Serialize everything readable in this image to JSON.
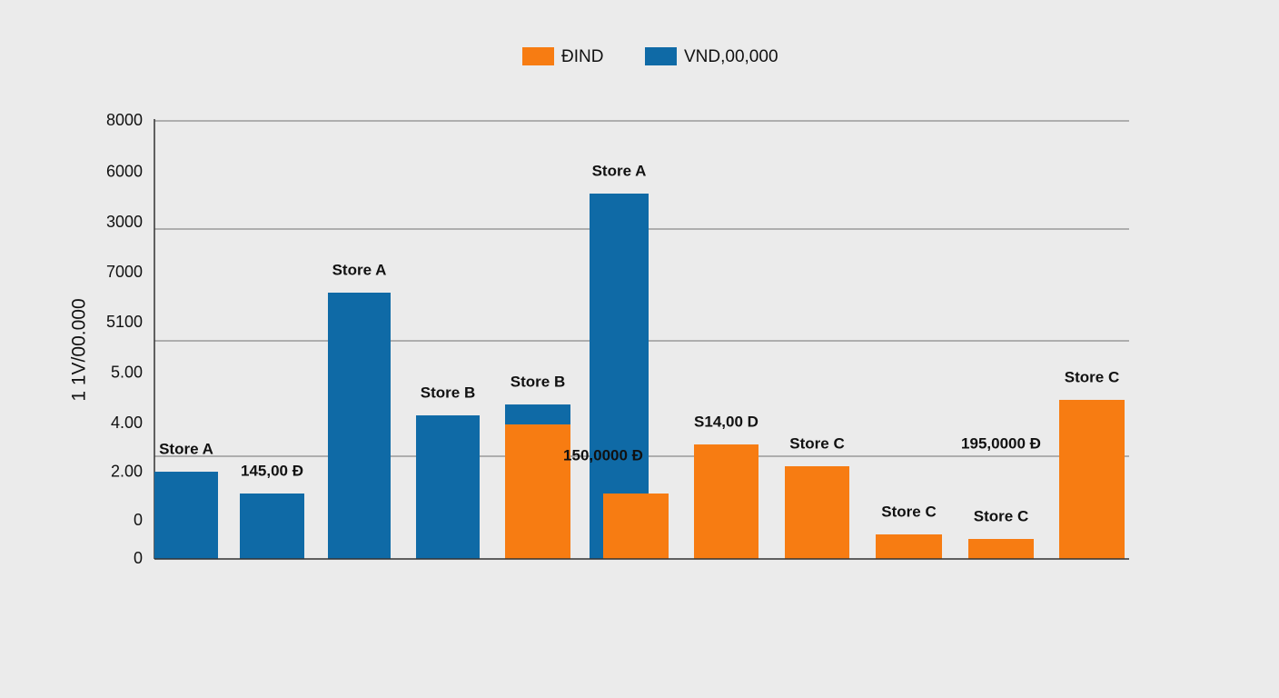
{
  "chart_data": {
    "type": "bar",
    "y_label": "1 1V/00.000",
    "ylim": [
      0,
      8000
    ],
    "yticks": [
      8000,
      {
        "value": 7054,
        "label": "6000"
      },
      {
        "value": 6141,
        "label": "3000"
      },
      {
        "value": 5228,
        "label": "7000"
      },
      {
        "value": 4315,
        "label": "5100"
      },
      {
        "value": 3386,
        "label": "5.00"
      },
      {
        "value": 2473,
        "label": "4.00"
      },
      {
        "value": 1577,
        "label": "2.00"
      },
      {
        "value": 697,
        "label": "0"
      },
      0
    ],
    "grid_lines": [
      8000,
      6025,
      3983,
      1876
    ],
    "series": [
      {
        "name": "ĐIND",
        "color": "#f77c12",
        "values": [
          2456,
          1195,
          2091,
          1693,
          448,
          365,
          2905
        ],
        "labels": [
          null,
          "150,0000 Đ",
          "S14,00 D",
          "Store C",
          "Store C",
          "Store C",
          "Store C"
        ]
      },
      {
        "name": "VND,00,000",
        "color": "#0f6aa6",
        "values": [
          1593,
          1195,
          4863,
          2622,
          365,
          6672
        ],
        "labels": [
          "Store A",
          "145,00 Đ",
          "Store A",
          "Store B",
          "Store B",
          "Store A"
        ]
      }
    ],
    "annotations": [
      "195,0000 Đ"
    ]
  }
}
